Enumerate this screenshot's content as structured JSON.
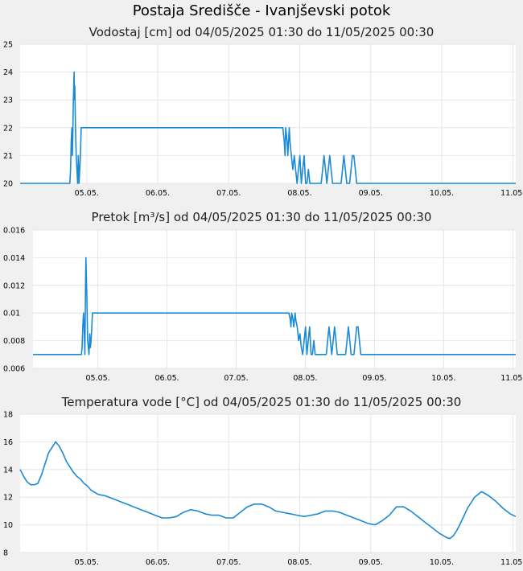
{
  "page": {
    "title": "Postaja Središče - Ivanjševski potok"
  },
  "chart_data": [
    {
      "type": "line",
      "title": "Vodostaj [cm] od 04/05/2025 01:30 do 11/05/2025 00:30",
      "xlabel": "",
      "ylabel": "",
      "xlim": [
        0,
        6.98
      ],
      "ylim": [
        20,
        25
      ],
      "yticks": [
        20,
        21,
        22,
        23,
        24,
        25
      ],
      "ytick_labels": [
        "20",
        "21",
        "22",
        "23",
        "24",
        "25"
      ],
      "xticks": [
        0.9375,
        1.9375,
        2.9375,
        3.9375,
        4.9375,
        5.9375,
        6.9375
      ],
      "xtick_labels": [
        "05.05.",
        "06.05.",
        "07.05.",
        "08.05.",
        "09.05.",
        "10.05.",
        "11.05."
      ],
      "grid": true,
      "color": "#1a8ad4",
      "x": [
        0,
        0.7,
        0.71,
        0.72,
        0.73,
        0.735,
        0.74,
        0.75,
        0.76,
        0.765,
        0.77,
        0.78,
        0.79,
        0.8,
        0.81,
        0.82,
        0.83,
        0.84,
        0.85,
        0.86,
        0.87,
        0.88,
        0.89,
        0.9,
        3.7,
        3.72,
        3.73,
        3.74,
        3.76,
        3.77,
        3.79,
        3.8,
        3.82,
        3.84,
        3.86,
        3.88,
        3.9,
        3.92,
        3.94,
        3.96,
        3.98,
        4.0,
        4.02,
        4.04,
        4.06,
        4.08,
        4.1,
        4.12,
        4.24,
        4.26,
        4.28,
        4.3,
        4.32,
        4.34,
        4.36,
        4.38,
        4.4,
        4.42,
        4.52,
        4.54,
        4.56,
        4.58,
        4.6,
        4.64,
        4.66,
        4.68,
        4.7,
        4.72,
        4.74,
        4.76,
        6.98
      ],
      "values": [
        20,
        20,
        20.5,
        21.5,
        22,
        21,
        21.5,
        23,
        24,
        23,
        23.5,
        22,
        21,
        20.5,
        20,
        21,
        20,
        20.5,
        21,
        22,
        22,
        22,
        22,
        22,
        22,
        21.5,
        21,
        22,
        21.5,
        21,
        22,
        21.5,
        21,
        20.5,
        21,
        20.5,
        20,
        20.5,
        21,
        20,
        20.5,
        21,
        20,
        20,
        20.5,
        20,
        20,
        20,
        20,
        20.5,
        21,
        20.5,
        20,
        20.5,
        21,
        20.5,
        20,
        20,
        20,
        20.5,
        21,
        20.5,
        20,
        20,
        20.5,
        21,
        21,
        20.5,
        20,
        20,
        20
      ]
    },
    {
      "type": "line",
      "title": "Pretok [m³/s] od 04/05/2025 01:30 do 11/05/2025 00:30",
      "xlabel": "",
      "ylabel": "",
      "xlim": [
        0,
        6.98
      ],
      "ylim": [
        0.006,
        0.016
      ],
      "yticks": [
        0.006,
        0.008,
        0.01,
        0.012,
        0.014,
        0.016
      ],
      "ytick_labels": [
        "0.006",
        "0.008",
        "0.01",
        "0.012",
        "0.014",
        "0.016"
      ],
      "xticks": [
        0.9375,
        1.9375,
        2.9375,
        3.9375,
        4.9375,
        5.9375,
        6.9375
      ],
      "xtick_labels": [
        "05.05.",
        "06.05.",
        "07.05.",
        "08.05.",
        "09.05.",
        "10.05.",
        "11.05."
      ],
      "grid": true,
      "color": "#1a8ad4",
      "x": [
        0,
        0.7,
        0.71,
        0.72,
        0.73,
        0.74,
        0.75,
        0.76,
        0.765,
        0.77,
        0.78,
        0.79,
        0.8,
        0.81,
        0.82,
        0.83,
        0.84,
        0.85,
        0.86,
        0.87,
        0.88,
        0.89,
        0.9,
        3.7,
        3.72,
        3.73,
        3.74,
        3.76,
        3.77,
        3.79,
        3.8,
        3.82,
        3.84,
        3.86,
        3.88,
        3.9,
        3.92,
        3.94,
        3.96,
        3.98,
        4.0,
        4.02,
        4.04,
        4.06,
        4.08,
        4.1,
        4.12,
        4.24,
        4.26,
        4.28,
        4.3,
        4.32,
        4.34,
        4.36,
        4.38,
        4.4,
        4.42,
        4.52,
        4.54,
        4.56,
        4.58,
        4.6,
        4.64,
        4.66,
        4.68,
        4.7,
        4.72,
        4.74,
        4.76,
        6.98
      ],
      "values": [
        0.007,
        0.007,
        0.0075,
        0.009,
        0.01,
        0.009,
        0.007,
        0.012,
        0.014,
        0.013,
        0.011,
        0.008,
        0.0075,
        0.007,
        0.0085,
        0.0075,
        0.008,
        0.009,
        0.01,
        0.01,
        0.01,
        0.01,
        0.01,
        0.01,
        0.0095,
        0.009,
        0.01,
        0.0095,
        0.009,
        0.01,
        0.0095,
        0.009,
        0.008,
        0.0085,
        0.0075,
        0.007,
        0.008,
        0.009,
        0.007,
        0.008,
        0.009,
        0.007,
        0.007,
        0.008,
        0.007,
        0.007,
        0.007,
        0.007,
        0.008,
        0.009,
        0.008,
        0.007,
        0.008,
        0.009,
        0.008,
        0.007,
        0.007,
        0.007,
        0.008,
        0.009,
        0.008,
        0.007,
        0.007,
        0.008,
        0.009,
        0.009,
        0.008,
        0.007,
        0.007,
        0.007
      ]
    },
    {
      "type": "line",
      "title": "Temperatura vode [°C] od 04/05/2025 01:30 do 11/05/2025 00:30",
      "xlabel": "",
      "ylabel": "",
      "xlim": [
        0,
        6.98
      ],
      "ylim": [
        8,
        18
      ],
      "yticks": [
        8,
        10,
        12,
        14,
        16,
        18
      ],
      "ytick_labels": [
        "8",
        "10",
        "12",
        "14",
        "16",
        "18"
      ],
      "xticks": [
        0.9375,
        1.9375,
        2.9375,
        3.9375,
        4.9375,
        5.9375,
        6.9375
      ],
      "xtick_labels": [
        "05.05.",
        "06.05.",
        "07.05.",
        "08.05.",
        "09.05.",
        "10.05.",
        "11.05."
      ],
      "grid": true,
      "color": "#1a8ad4",
      "x": [
        0,
        0.05,
        0.1,
        0.15,
        0.2,
        0.25,
        0.3,
        0.35,
        0.4,
        0.45,
        0.5,
        0.55,
        0.6,
        0.65,
        0.7,
        0.75,
        0.8,
        0.85,
        0.9,
        0.95,
        1.0,
        1.1,
        1.2,
        1.3,
        1.4,
        1.5,
        1.6,
        1.7,
        1.8,
        1.9,
        2.0,
        2.1,
        2.2,
        2.3,
        2.4,
        2.5,
        2.6,
        2.7,
        2.8,
        2.9,
        3.0,
        3.1,
        3.2,
        3.3,
        3.4,
        3.5,
        3.6,
        3.7,
        3.8,
        3.9,
        4.0,
        4.1,
        4.2,
        4.3,
        4.4,
        4.5,
        4.6,
        4.7,
        4.8,
        4.9,
        5.0,
        5.1,
        5.2,
        5.3,
        5.4,
        5.5,
        5.6,
        5.7,
        5.8,
        5.9,
        6.0,
        6.05,
        6.1,
        6.15,
        6.2,
        6.3,
        6.4,
        6.5,
        6.6,
        6.7,
        6.8,
        6.9,
        6.98
      ],
      "values": [
        14.0,
        13.5,
        13.1,
        12.9,
        12.9,
        13.0,
        13.6,
        14.4,
        15.2,
        15.6,
        16.0,
        15.7,
        15.2,
        14.6,
        14.2,
        13.8,
        13.5,
        13.3,
        13.0,
        12.8,
        12.5,
        12.2,
        12.1,
        11.9,
        11.7,
        11.5,
        11.3,
        11.1,
        10.9,
        10.7,
        10.5,
        10.5,
        10.6,
        10.9,
        11.1,
        11.0,
        10.8,
        10.7,
        10.7,
        10.5,
        10.5,
        10.9,
        11.3,
        11.5,
        11.5,
        11.3,
        11.0,
        10.9,
        10.8,
        10.7,
        10.6,
        10.7,
        10.8,
        11.0,
        11.0,
        10.9,
        10.7,
        10.5,
        10.3,
        10.1,
        10.0,
        10.3,
        10.7,
        11.3,
        11.3,
        11.0,
        10.6,
        10.2,
        9.8,
        9.4,
        9.1,
        9.0,
        9.2,
        9.6,
        10.1,
        11.2,
        12.0,
        12.4,
        12.1,
        11.7,
        11.2,
        10.8,
        10.6
      ]
    }
  ]
}
